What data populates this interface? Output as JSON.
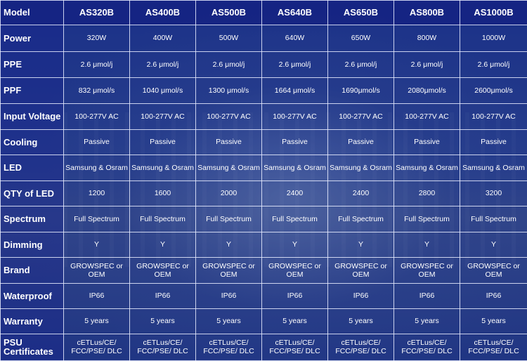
{
  "table": {
    "header": {
      "label": "Model",
      "models": [
        "AS320B",
        "AS400B",
        "AS500B",
        "AS640B",
        "AS650B",
        "AS800B",
        "AS1000B"
      ]
    },
    "rows": [
      {
        "label": "Power",
        "values": [
          "320W",
          "400W",
          "500W",
          "640W",
          "650W",
          "800W",
          "1000W"
        ]
      },
      {
        "label": "PPE",
        "values": [
          "2.6 μmol/j",
          "2.6 μmol/j",
          "2.6 μmol/j",
          "2.6 μmol/j",
          "2.6 μmol/j",
          "2.6 μmol/j",
          "2.6 μmol/j"
        ]
      },
      {
        "label": "PPF",
        "values": [
          "832 μmol/s",
          "1040 μmol/s",
          "1300 μmol/s",
          "1664 μmol/s",
          "1690μmol/s",
          "2080μmol/s",
          "2600μmol/s"
        ]
      },
      {
        "label": "Input Voltage",
        "values": [
          "100-277V AC",
          "100-277V AC",
          "100-277V AC",
          "100-277V AC",
          "100-277V AC",
          "100-277V AC",
          "100-277V AC"
        ]
      },
      {
        "label": "Cooling",
        "values": [
          "Passive",
          "Passive",
          "Passive",
          "Passive",
          "Passive",
          "Passive",
          "Passive"
        ]
      },
      {
        "label": "LED",
        "values": [
          "Samsung & Osram",
          "Samsung & Osram",
          "Samsung & Osram",
          "Samsung & Osram",
          "Samsung & Osram",
          "Samsung & Osram",
          "Samsung & Osram"
        ]
      },
      {
        "label": "QTY of LED",
        "values": [
          "1200",
          "1600",
          "2000",
          "2400",
          "2400",
          "2800",
          "3200"
        ]
      },
      {
        "label": "Spectrum",
        "values": [
          "Full Spectrum",
          "Full Spectrum",
          "Full Spectrum",
          "Full Spectrum",
          "Full Spectrum",
          "Full Spectrum",
          "Full Spectrum"
        ]
      },
      {
        "label": "Dimming",
        "values": [
          "Y",
          "Y",
          "Y",
          "Y",
          "Y",
          "Y",
          "Y"
        ]
      },
      {
        "label": "Brand",
        "values": [
          "GROWSPEC or OEM",
          "GROWSPEC or OEM",
          "GROWSPEC or OEM",
          "GROWSPEC or OEM",
          "GROWSPEC or OEM",
          "GROWSPEC or OEM",
          "GROWSPEC or OEM"
        ]
      },
      {
        "label": "Waterproof",
        "values": [
          "IP66",
          "IP66",
          "IP66",
          "IP66",
          "IP66",
          "IP66",
          "IP66"
        ]
      },
      {
        "label": "Warranty",
        "values": [
          "5 years",
          "5 years",
          "5 years",
          "5 years",
          "5 years",
          "5 years",
          "5 years"
        ]
      },
      {
        "label": "PSU Certificates",
        "values": [
          "cETLus/CE/ FCC/PSE/ DLC",
          "cETLus/CE/ FCC/PSE/ DLC",
          "cETLus/CE/ FCC/PSE/ DLC",
          "cETLus/CE/ FCC/PSE/ DLC",
          "cETLus/CE/ FCC/PSE/ DLC",
          "cETLus/CE/ FCC/PSE/ DLC",
          "cETLus/CE/ FCC/PSE/ DLC"
        ]
      }
    ]
  }
}
